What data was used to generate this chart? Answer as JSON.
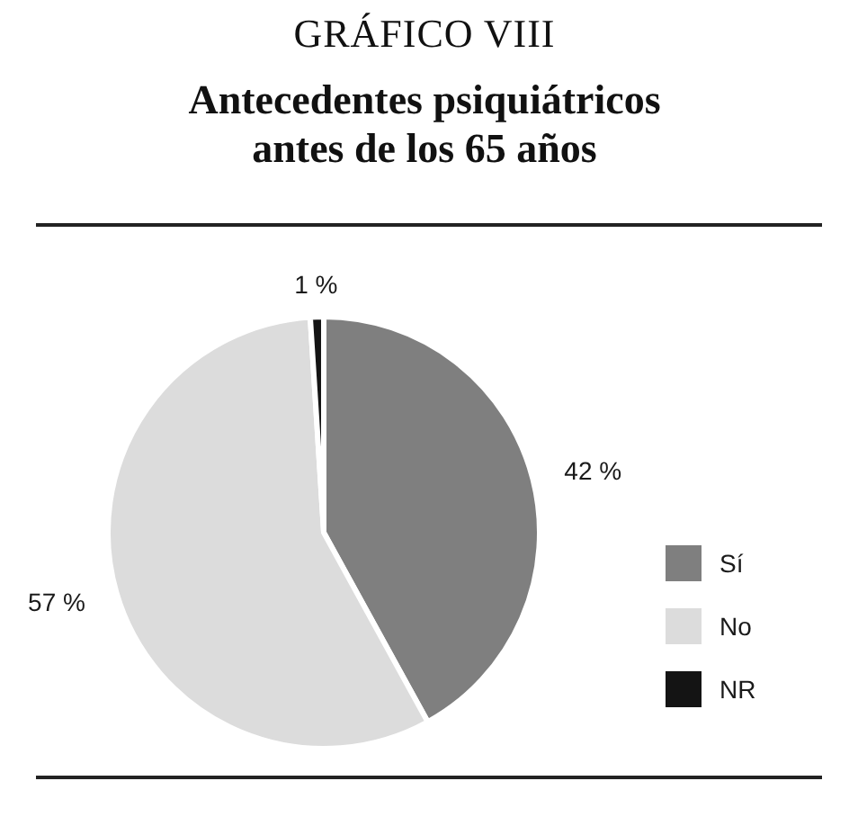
{
  "chart_data": {
    "type": "pie",
    "title": "GRÁFICO VIII",
    "subtitle": "Antecedentes psiquiátricos antes de los 65 años",
    "categories": [
      "Sí",
      "No",
      "NR"
    ],
    "values": [
      42,
      57,
      1
    ],
    "colors": [
      "#7f7f7f",
      "#dcdcdc",
      "#141414"
    ],
    "value_labels": [
      "42 %",
      "57 %",
      "1 %"
    ],
    "legend": "right"
  }
}
